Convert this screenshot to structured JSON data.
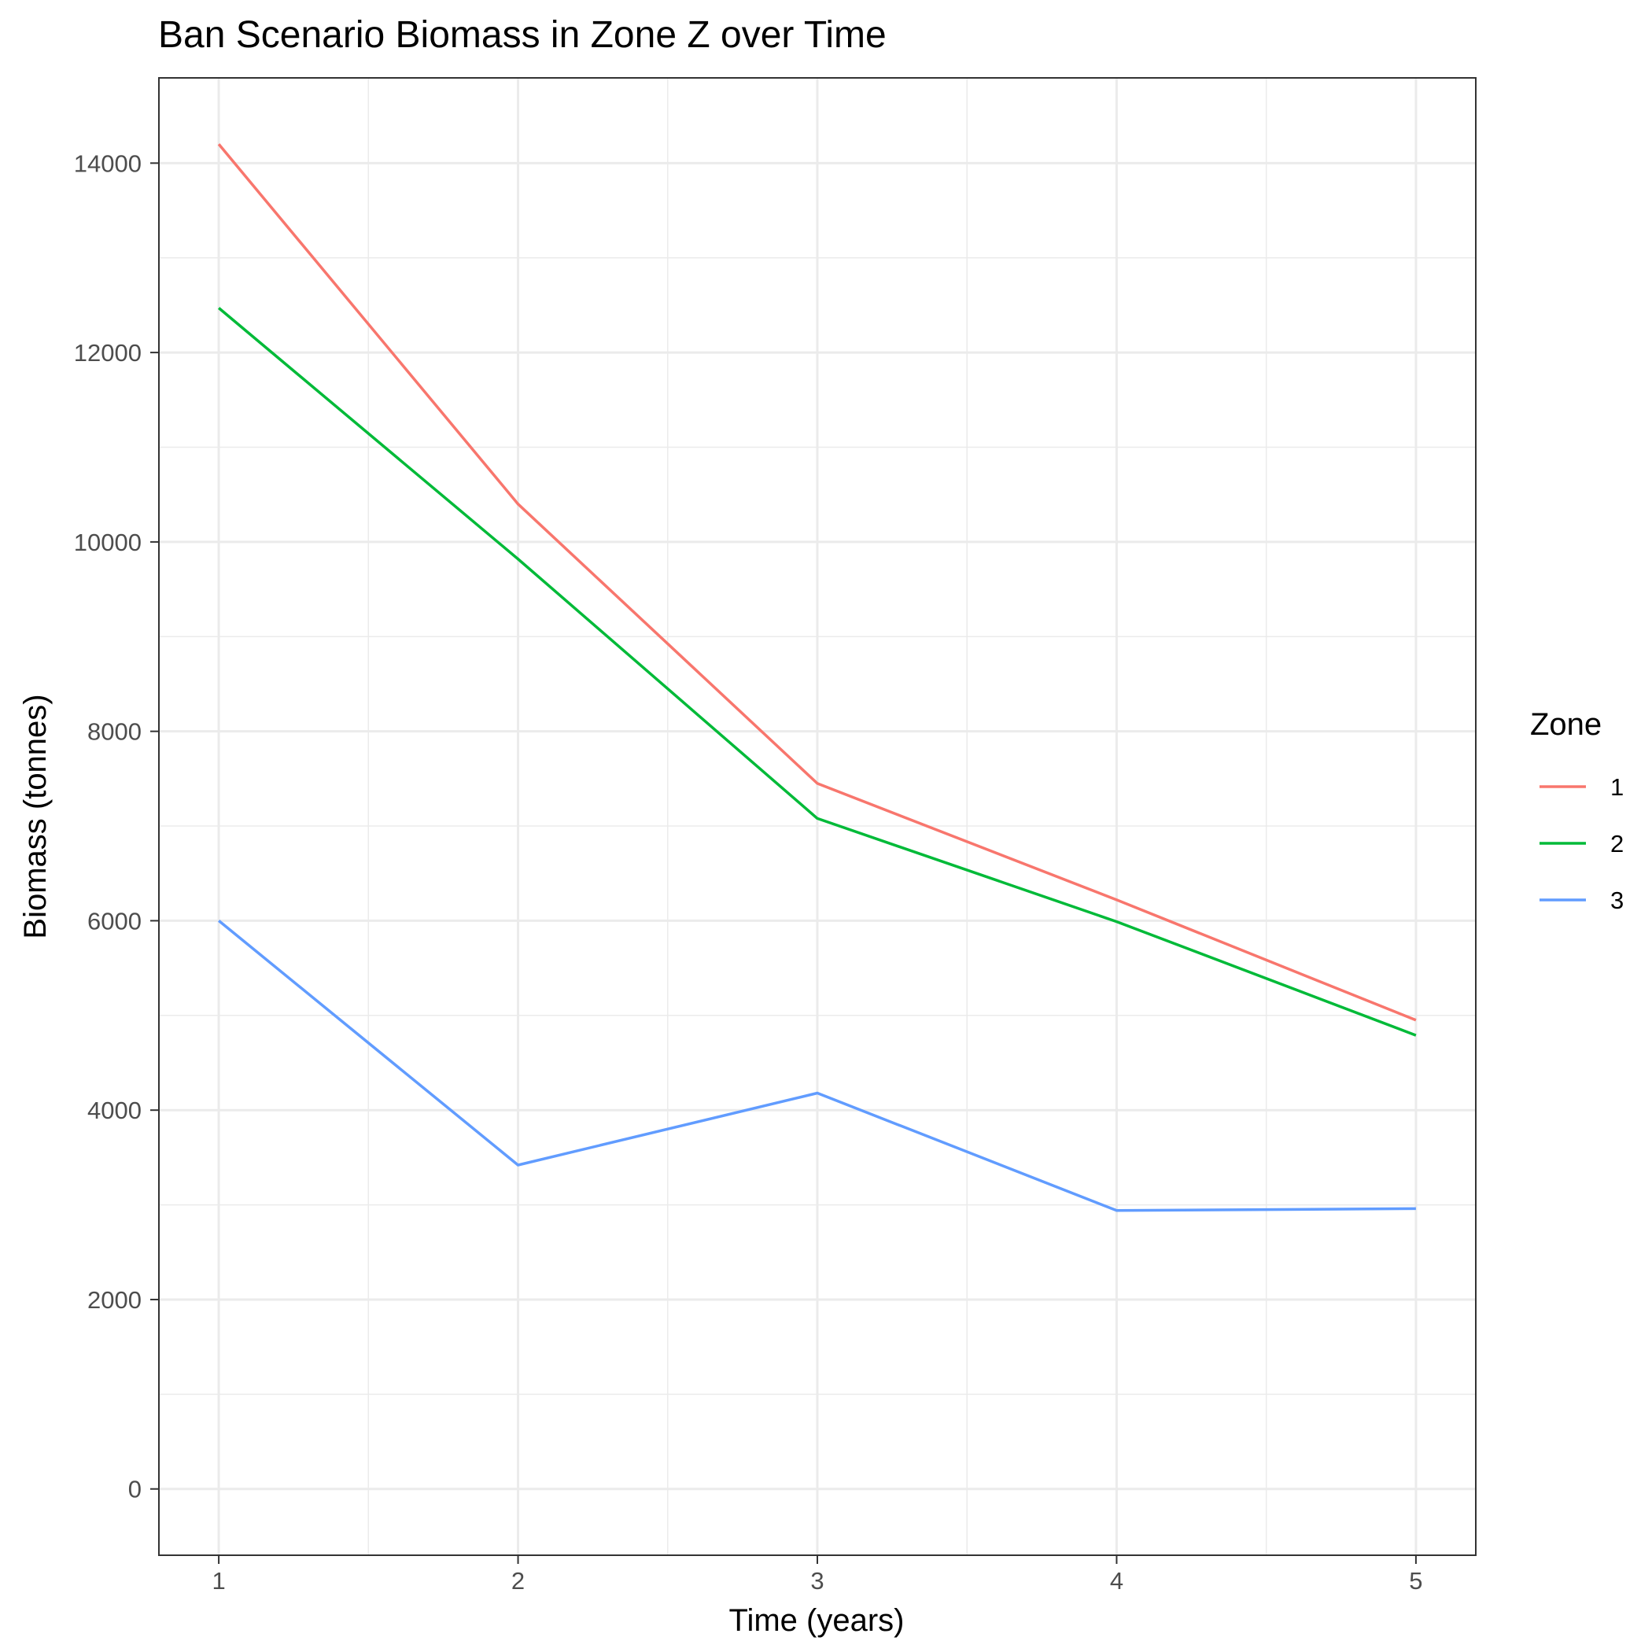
{
  "chart_data": {
    "type": "line",
    "title": "Ban Scenario Biomass in Zone Z over Time",
    "xlabel": "Time (years)",
    "ylabel": "Biomass (tonnes)",
    "x": [
      1,
      2,
      3,
      4,
      5
    ],
    "x_ticks": [
      "1",
      "2",
      "3",
      "4",
      "5"
    ],
    "y_ticks": [
      "0",
      "2000",
      "4000",
      "6000",
      "8000",
      "10000",
      "12000",
      "14000"
    ],
    "y_tick_values": [
      0,
      2000,
      4000,
      6000,
      8000,
      10000,
      12000,
      14000
    ],
    "xlim": [
      0.8,
      5.2
    ],
    "ylim": [
      -700,
      14900
    ],
    "grid": true,
    "legend": {
      "title": "Zone",
      "placement": "right"
    },
    "series": [
      {
        "name": "1",
        "color": "#F8766D",
        "values": [
          14200,
          10400,
          7450,
          6220,
          4950
        ]
      },
      {
        "name": "2",
        "color": "#00BA38",
        "values": [
          12470,
          9820,
          7080,
          5990,
          4790
        ]
      },
      {
        "name": "3",
        "color": "#619CFF",
        "values": [
          6000,
          3420,
          4180,
          2940,
          2960
        ]
      }
    ]
  }
}
